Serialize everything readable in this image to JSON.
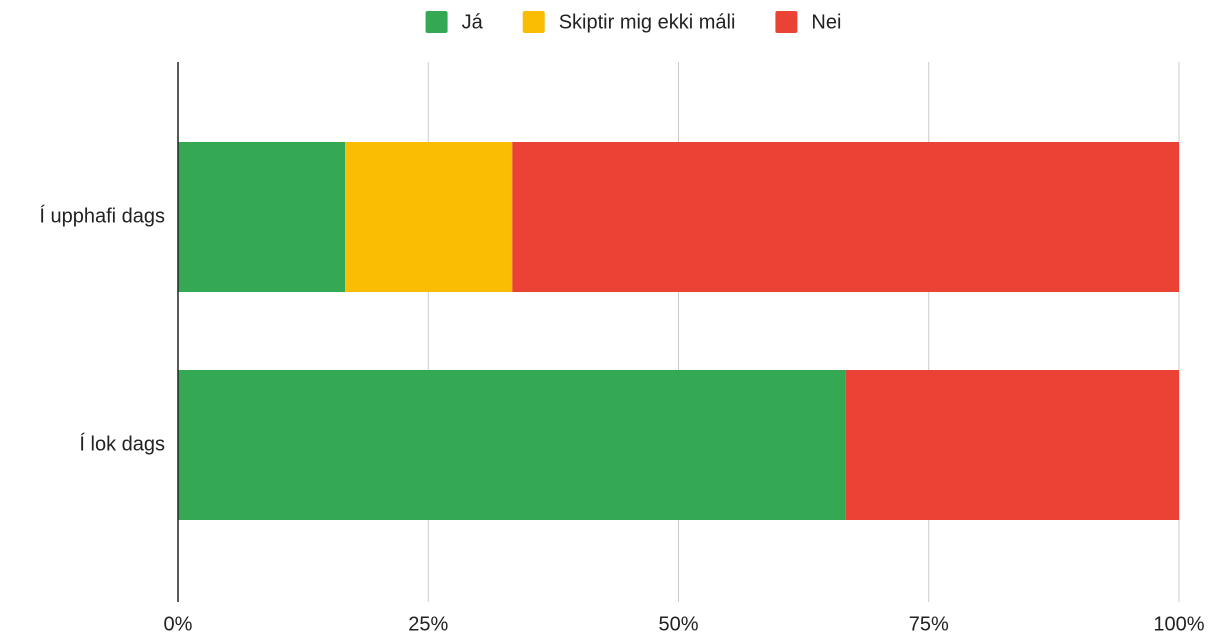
{
  "chart_data": {
    "type": "stacked_barh",
    "categories": [
      "Í upphafi dags",
      "Í lok dags"
    ],
    "series": [
      {
        "name": "Já",
        "color": "#34a853",
        "values": [
          16.7,
          66.7
        ]
      },
      {
        "name": "Skiptir mig ekki máli",
        "color": "#fbbc04",
        "values": [
          16.7,
          0
        ]
      },
      {
        "name": "Nei",
        "color": "#ea4335",
        "values": [
          66.6,
          33.3
        ]
      }
    ],
    "xlim": [
      0,
      100
    ],
    "xticks": [
      {
        "value": 0,
        "label": "0%"
      },
      {
        "value": 25,
        "label": "25%"
      },
      {
        "value": 50,
        "label": "50%"
      },
      {
        "value": 75,
        "label": "75%"
      },
      {
        "value": 100,
        "label": "100%"
      }
    ],
    "grid": true,
    "legend": "top"
  }
}
